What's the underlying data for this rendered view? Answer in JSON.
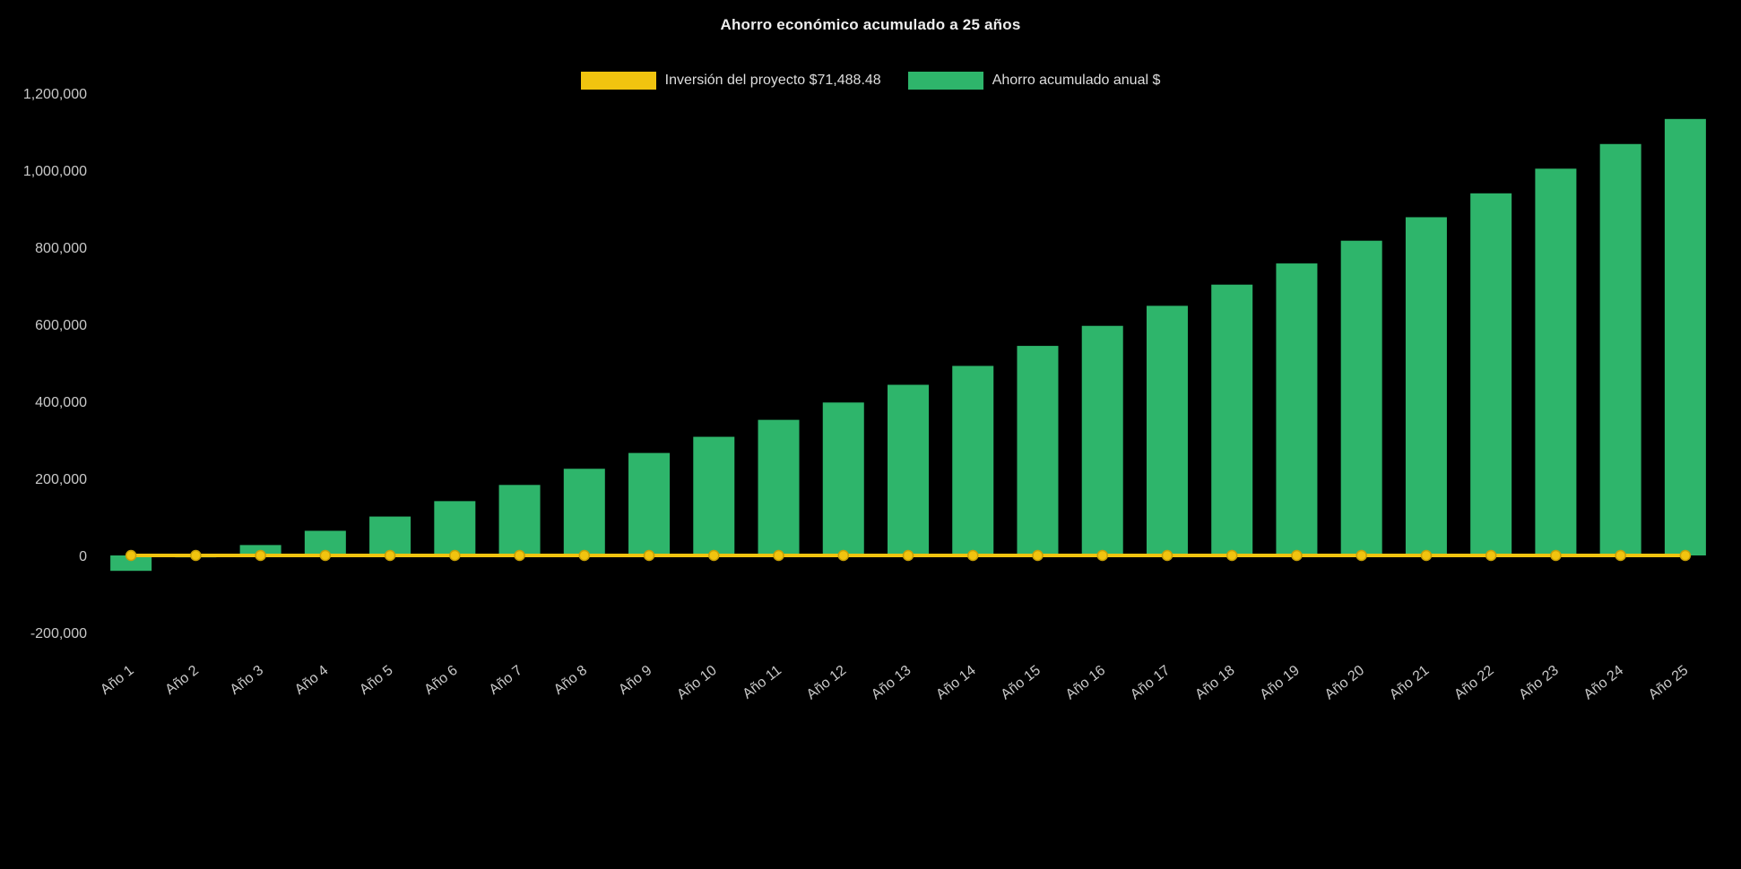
{
  "chart_data": {
    "type": "bar",
    "title": "Ahorro económico acumulado a 25 años",
    "categories": [
      "Año 1",
      "Año 2",
      "Año 3",
      "Año 4",
      "Año 5",
      "Año 6",
      "Año 7",
      "Año 8",
      "Año 9",
      "Año 10",
      "Año 11",
      "Año 12",
      "Año 13",
      "Año 14",
      "Año 15",
      "Año 16",
      "Año 17",
      "Año 18",
      "Año 19",
      "Año 20",
      "Año 21",
      "Año 22",
      "Año 23",
      "Año 24",
      "Año 25"
    ],
    "series": [
      {
        "name": "Inversión del proyecto $71,488.48",
        "type": "line",
        "color": "#f1c40f",
        "point_color": "#f1c40f",
        "point_stroke": "#c9a106",
        "values": [
          0,
          0,
          0,
          0,
          0,
          0,
          0,
          0,
          0,
          0,
          0,
          0,
          0,
          0,
          0,
          0,
          0,
          0,
          0,
          0,
          0,
          0,
          0,
          0,
          0
        ]
      },
      {
        "name": "Ahorro acumulado anual $",
        "type": "bar",
        "color": "#2eb56b",
        "values": [
          -40000,
          -5000,
          27000,
          64000,
          101000,
          141000,
          183000,
          225000,
          266000,
          308000,
          352000,
          397000,
          443000,
          492000,
          544000,
          596000,
          648000,
          703000,
          758000,
          817000,
          878000,
          940000,
          1004000,
          1068000,
          1133000
        ]
      }
    ],
    "ylim": [
      -200000,
      1200000
    ],
    "y_ticks": [
      -200000,
      0,
      200000,
      400000,
      600000,
      800000,
      1000000,
      1200000
    ],
    "grid": false,
    "legend_position": "top",
    "xlabel": "",
    "ylabel": "",
    "text_color": "#c9c9c9",
    "title_color": "#ededed",
    "background": "#000000"
  }
}
